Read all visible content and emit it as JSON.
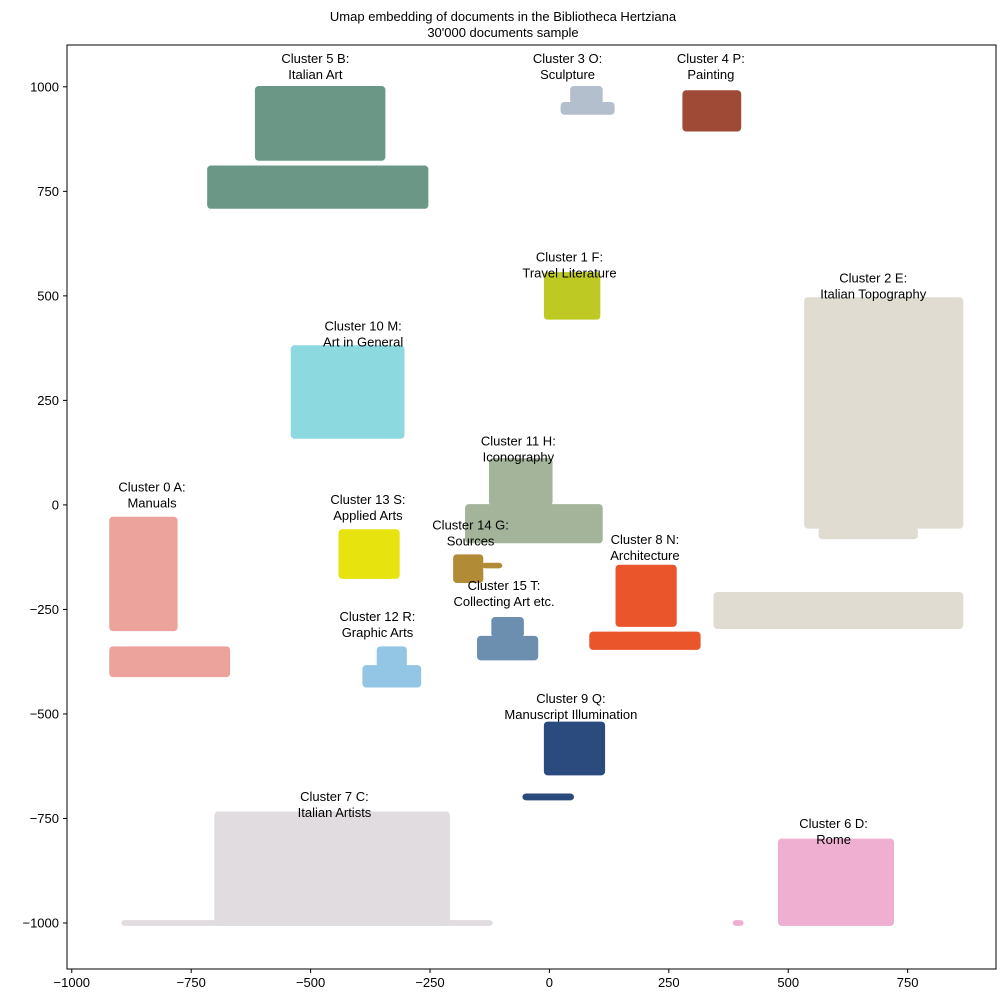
{
  "chart_data": {
    "type": "scatter",
    "title": "Umap embedding of documents in the Bibliotheca Hertziana",
    "subtitle": "30'000 documents sample",
    "xlim": [
      -1010,
      935
    ],
    "ylim": [
      -1110,
      1100
    ],
    "xticks": [
      -1000,
      -750,
      -500,
      -250,
      0,
      250,
      500,
      750
    ],
    "yticks": [
      -1000,
      -750,
      -500,
      -250,
      0,
      250,
      500,
      750,
      1000
    ],
    "xtick_labels": [
      "−1000",
      "−750",
      "−500",
      "−250",
      "0",
      "250",
      "500",
      "750"
    ],
    "ytick_labels": [
      "−1000",
      "−750",
      "−500",
      "−250",
      "0",
      "250",
      "500",
      "750",
      "1000"
    ],
    "grid": false,
    "clusters": [
      {
        "id": 0,
        "label_line1": "Cluster 0 A:",
        "label_line2": "Manuals",
        "color": "#eca39c",
        "label_pos": [
          -832,
          15
        ],
        "regions": [
          [
            -920,
            -780,
            -300,
            -30
          ],
          [
            -920,
            -670,
            -410,
            -340
          ]
        ]
      },
      {
        "id": 1,
        "label_line1": "Cluster 1 F:",
        "label_line2": "Travel Literature",
        "color": "#bfc923",
        "label_pos": [
          42,
          565
        ],
        "regions": [
          [
            -10,
            105,
            445,
            555
          ]
        ]
      },
      {
        "id": 2,
        "label_line1": "Cluster 2 E:",
        "label_line2": "Italian Topography",
        "color": "#e0dcd1",
        "label_pos": [
          678,
          515
        ],
        "regions": [
          [
            535,
            865,
            -55,
            495
          ],
          [
            565,
            770,
            -80,
            -55
          ],
          [
            345,
            865,
            -295,
            -210
          ]
        ]
      },
      {
        "id": 3,
        "label_line1": "Cluster 3 O:",
        "label_line2": "Sculpture",
        "color": "#b4bfcd",
        "label_pos": [
          38,
          1040
        ],
        "regions": [
          [
            45,
            110,
            960,
            1000
          ],
          [
            25,
            135,
            935,
            962
          ]
        ]
      },
      {
        "id": 4,
        "label_line1": "Cluster 4 P:",
        "label_line2": "Painting",
        "color": "#9e4a36",
        "label_pos": [
          338,
          1040
        ],
        "regions": [
          [
            280,
            400,
            895,
            990
          ]
        ]
      },
      {
        "id": 5,
        "label_line1": "Cluster 5 B:",
        "label_line2": "Italian Art",
        "color": "#6b9886",
        "label_pos": [
          -490,
          1040
        ],
        "regions": [
          [
            -615,
            -345,
            825,
            1000
          ],
          [
            -715,
            -255,
            710,
            810
          ]
        ]
      },
      {
        "id": 6,
        "label_line1": "Cluster 6 D:",
        "label_line2": "Rome",
        "color": "#eeafd0",
        "label_pos": [
          595,
          -790
        ],
        "regions": [
          [
            480,
            720,
            -1005,
            -800
          ],
          [
            385,
            405,
            -1005,
            -995
          ]
        ]
      },
      {
        "id": 7,
        "label_line1": "Cluster 7 C:",
        "label_line2": "Italian Artists",
        "color": "#e0dce0",
        "label_pos": [
          -450,
          -725
        ],
        "regions": [
          [
            -700,
            -210,
            -1005,
            -735
          ],
          [
            -895,
            -120,
            -1005,
            -995
          ]
        ]
      },
      {
        "id": 8,
        "label_line1": "Cluster 8 N:",
        "label_line2": "Architecture",
        "color": "#ea552c",
        "label_pos": [
          200,
          -110
        ],
        "regions": [
          [
            140,
            265,
            -290,
            -145
          ],
          [
            85,
            315,
            -345,
            -305
          ]
        ]
      },
      {
        "id": 9,
        "label_line1": "Cluster 9 Q:",
        "label_line2": "Manuscript Illumination",
        "color": "#2b4a7d",
        "label_pos": [
          45,
          -490
        ],
        "regions": [
          [
            -10,
            115,
            -645,
            -520
          ],
          [
            -55,
            50,
            -705,
            -692
          ]
        ]
      },
      {
        "id": 10,
        "label_line1": "Cluster 10 M:",
        "label_line2": "Art in General",
        "color": "#8dd9e0",
        "label_pos": [
          -390,
          400
        ],
        "regions": [
          [
            -540,
            -305,
            160,
            380
          ]
        ]
      },
      {
        "id": 11,
        "label_line1": "Cluster 11 H:",
        "label_line2": "Iconography",
        "color": "#a3b49b",
        "label_pos": [
          -65,
          125
        ],
        "regions": [
          [
            -125,
            5,
            0,
            110
          ],
          [
            -175,
            110,
            -90,
            0
          ]
        ]
      },
      {
        "id": 12,
        "label_line1": "Cluster 12 R:",
        "label_line2": "Graphic Arts",
        "color": "#93c6e4",
        "label_pos": [
          -360,
          -295
        ],
        "regions": [
          [
            -360,
            -300,
            -390,
            -340
          ],
          [
            -390,
            -270,
            -435,
            -385
          ]
        ]
      },
      {
        "id": 13,
        "label_line1": "Cluster 13 S:",
        "label_line2": "Applied Arts",
        "color": "#e6e30f",
        "label_pos": [
          -380,
          -15
        ],
        "regions": [
          [
            -440,
            -315,
            -175,
            -60
          ]
        ]
      },
      {
        "id": 14,
        "label_line1": "Cluster 14 G:",
        "label_line2": "Sources",
        "color": "#b28b37",
        "label_pos": [
          -165,
          -75
        ],
        "regions": [
          [
            -200,
            -140,
            -185,
            -120
          ],
          [
            -140,
            -100,
            -150,
            -140
          ]
        ]
      },
      {
        "id": 15,
        "label_line1": "Cluster 15 T:",
        "label_line2": "Collecting Art etc.",
        "color": "#6c8fb0",
        "label_pos": [
          -95,
          -220
        ],
        "regions": [
          [
            -120,
            -55,
            -315,
            -270
          ],
          [
            -150,
            -25,
            -370,
            -315
          ]
        ]
      }
    ]
  }
}
